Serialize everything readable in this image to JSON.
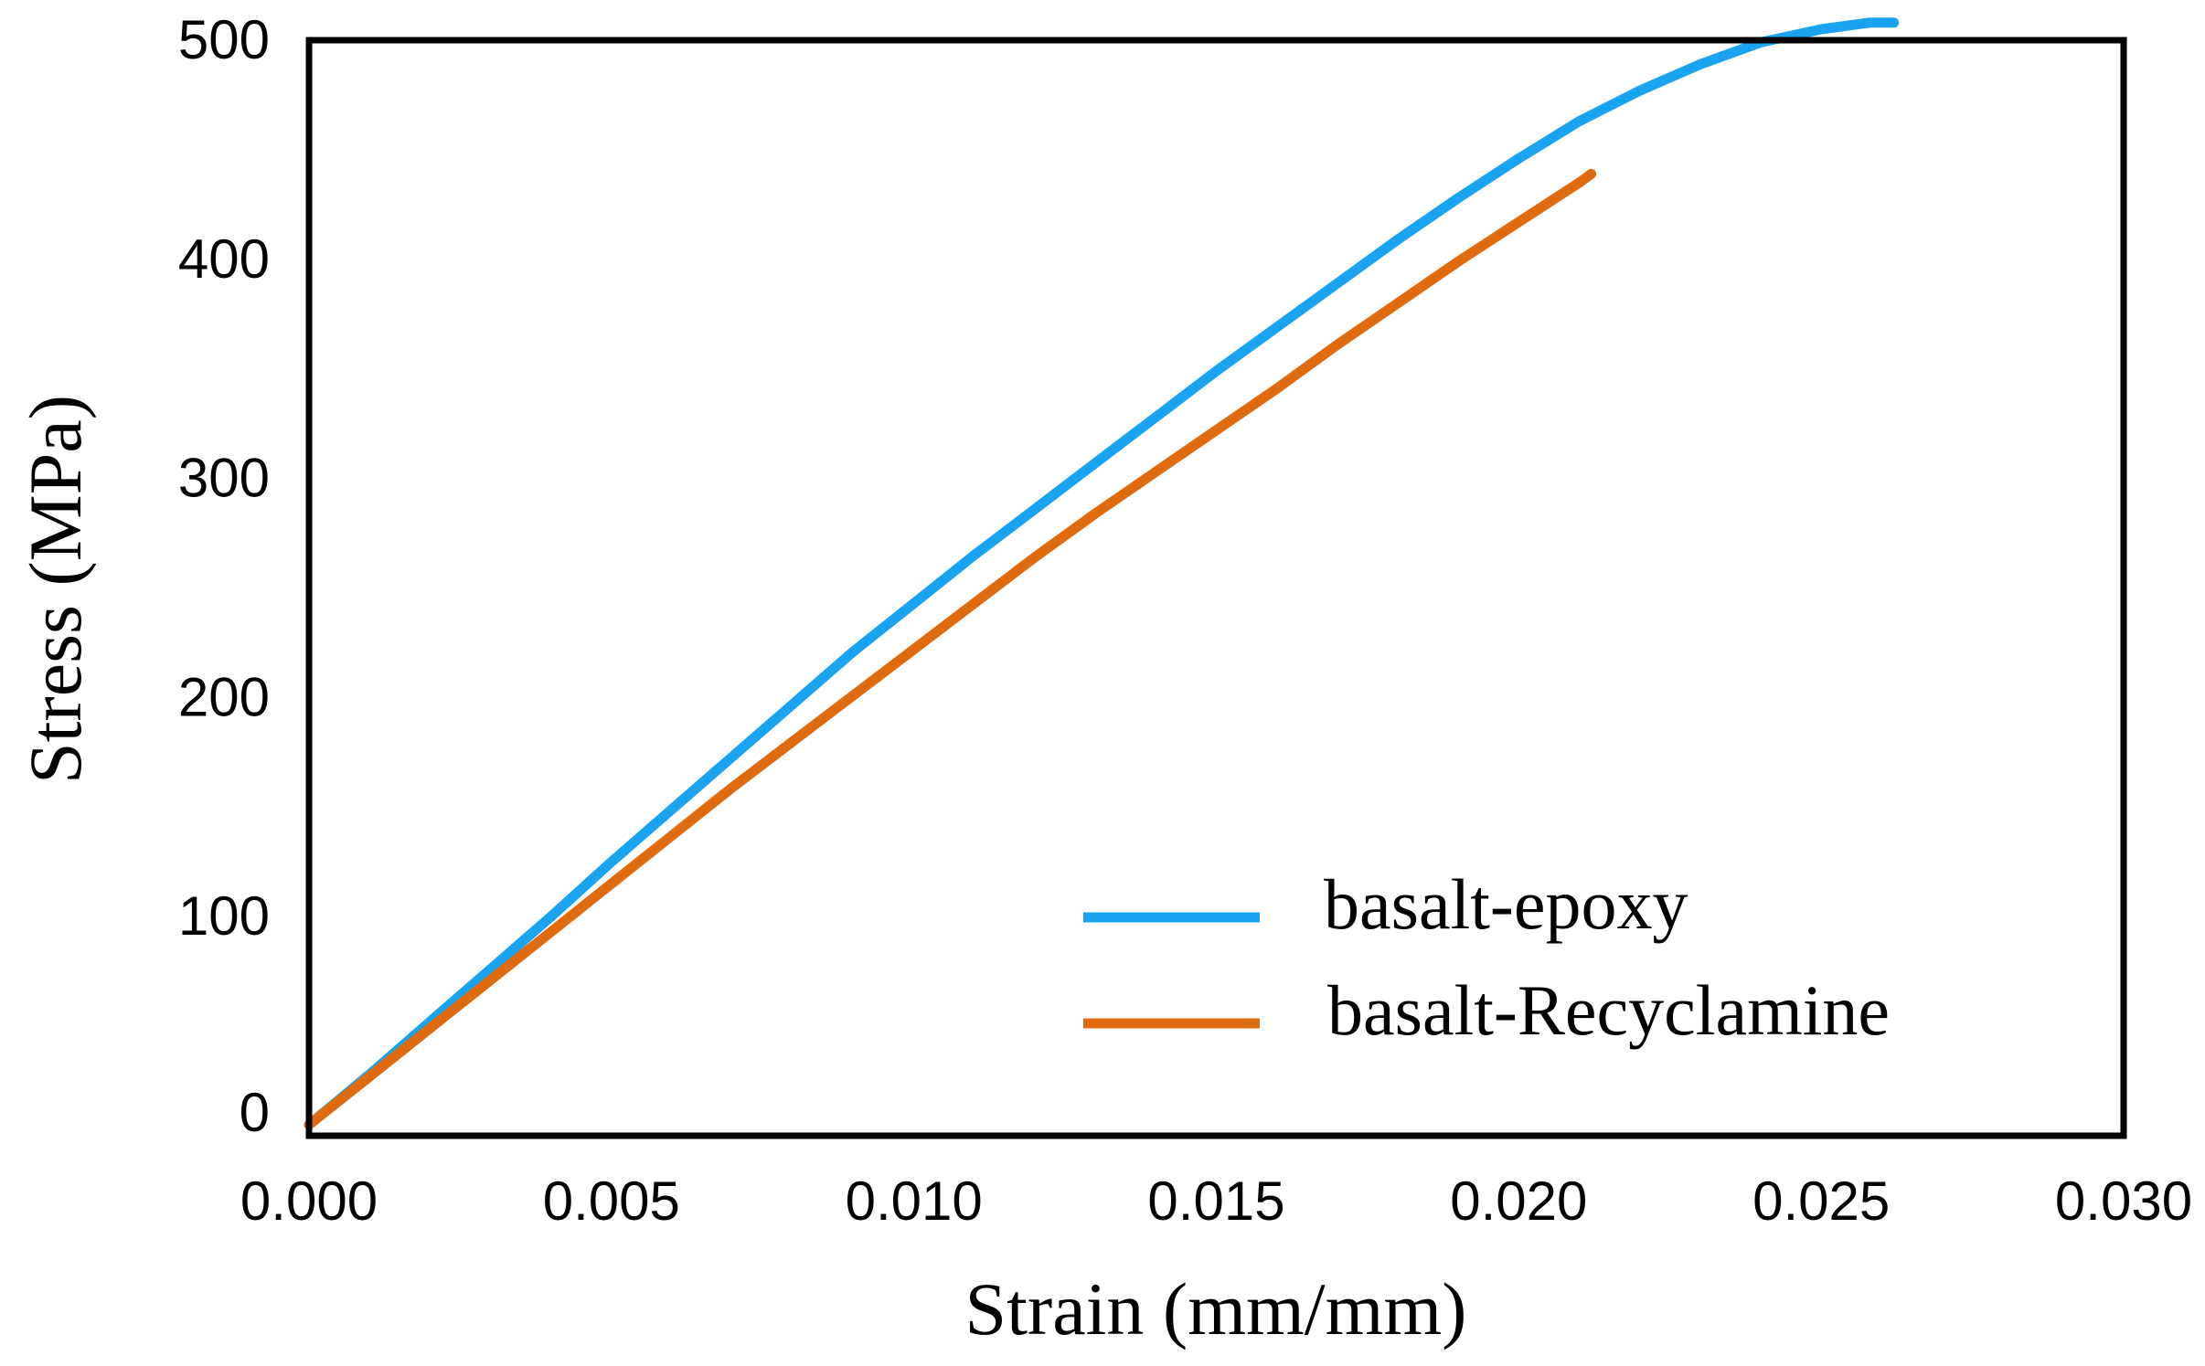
{
  "chart_data": {
    "type": "line",
    "xlabel": "Strain (mm/mm)",
    "ylabel": "Stress (MPa)",
    "xlim": [
      0,
      0.03
    ],
    "ylim": [
      0,
      500
    ],
    "x_ticks": [
      "0.000",
      "0.005",
      "0.010",
      "0.015",
      "0.020",
      "0.025",
      "0.030"
    ],
    "y_ticks": [
      "0",
      "100",
      "200",
      "300",
      "400",
      "500"
    ],
    "grid": false,
    "legend_position": "bottom-right",
    "series": [
      {
        "name": "basalt-epoxy",
        "color": "#1AA3F0",
        "x": [
          0.0,
          0.001,
          0.002,
          0.003,
          0.004,
          0.005,
          0.006,
          0.007,
          0.008,
          0.009,
          0.01,
          0.011,
          0.012,
          0.013,
          0.014,
          0.015,
          0.016,
          0.017,
          0.018,
          0.019,
          0.02,
          0.021,
          0.022,
          0.023,
          0.024,
          0.025,
          0.0258,
          0.0262
        ],
        "y": [
          5,
          28,
          52,
          76,
          100,
          125,
          149,
          173,
          197,
          221,
          243,
          265,
          286,
          307,
          328,
          349,
          369,
          389,
          409,
          428,
          446,
          463,
          477,
          489,
          499,
          505,
          508,
          508
        ]
      },
      {
        "name": "basalt-Recyclamine",
        "color": "#E06A0E",
        "x": [
          0.0,
          0.001,
          0.002,
          0.003,
          0.004,
          0.005,
          0.006,
          0.007,
          0.008,
          0.009,
          0.01,
          0.011,
          0.012,
          0.013,
          0.014,
          0.015,
          0.016,
          0.017,
          0.018,
          0.019,
          0.02,
          0.021,
          0.0212
        ],
        "y": [
          5,
          27,
          49,
          71,
          93,
          115,
          137,
          159,
          180,
          201,
          222,
          243,
          264,
          284,
          303,
          322,
          341,
          361,
          380,
          399,
          417,
          435,
          439
        ]
      }
    ]
  }
}
